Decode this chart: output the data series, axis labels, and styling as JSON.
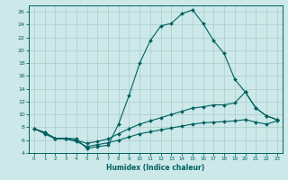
{
  "xlabel": "Humidex (Indice chaleur)",
  "bg_color": "#cce8e8",
  "line_color": "#006060",
  "grid_color": "#aacccc",
  "xlim": [
    -0.5,
    23.5
  ],
  "ylim": [
    4,
    27
  ],
  "yticks": [
    4,
    6,
    8,
    10,
    12,
    14,
    16,
    18,
    20,
    22,
    24,
    26
  ],
  "xticks": [
    0,
    1,
    2,
    3,
    4,
    5,
    6,
    7,
    8,
    9,
    10,
    11,
    12,
    13,
    14,
    15,
    16,
    17,
    18,
    19,
    20,
    21,
    22,
    23
  ],
  "series": [
    {
      "x": [
        0,
        1,
        2,
        3,
        4,
        5,
        6,
        7,
        8,
        9,
        10,
        11,
        12,
        13,
        14,
        15,
        16,
        17,
        18,
        19,
        20,
        21,
        22,
        23
      ],
      "y": [
        7.8,
        7.2,
        6.3,
        6.3,
        6.2,
        4.7,
        5.0,
        5.2,
        8.5,
        13.0,
        18.0,
        21.5,
        23.8,
        24.2,
        25.7,
        26.3,
        24.2,
        21.5,
        19.5,
        15.5,
        13.5,
        11.0,
        9.8,
        9.2
      ]
    },
    {
      "x": [
        0,
        1,
        2,
        3,
        4,
        5,
        6,
        7,
        8,
        9,
        10,
        11,
        12,
        13,
        14,
        15,
        16,
        17,
        18,
        19,
        20,
        21,
        22,
        23
      ],
      "y": [
        7.8,
        7.2,
        6.3,
        6.3,
        6.0,
        5.5,
        5.8,
        6.2,
        7.0,
        7.8,
        8.5,
        9.0,
        9.5,
        10.0,
        10.5,
        11.0,
        11.2,
        11.5,
        11.5,
        11.8,
        13.5,
        11.0,
        9.8,
        9.2
      ]
    },
    {
      "x": [
        0,
        1,
        2,
        3,
        4,
        5,
        6,
        7,
        8,
        9,
        10,
        11,
        12,
        13,
        14,
        15,
        16,
        17,
        18,
        19,
        20,
        21,
        22,
        23
      ],
      "y": [
        7.8,
        7.0,
        6.2,
        6.2,
        5.8,
        5.0,
        5.3,
        5.6,
        6.0,
        6.5,
        7.0,
        7.3,
        7.6,
        7.9,
        8.2,
        8.5,
        8.7,
        8.8,
        8.9,
        9.0,
        9.2,
        8.8,
        8.5,
        9.0
      ]
    }
  ]
}
